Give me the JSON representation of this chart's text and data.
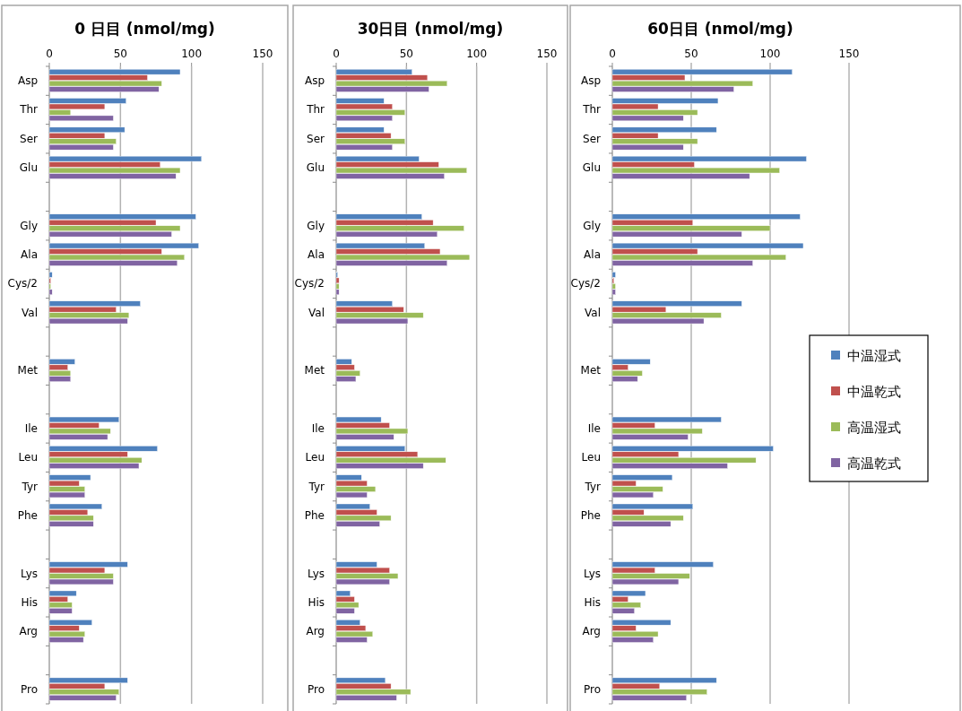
{
  "chart_data": [
    {
      "type": "bar",
      "orientation": "horizontal",
      "title": "0 日目 (nmol/mg)",
      "categories": [
        "Asp",
        "Thr",
        "Ser",
        "Glu",
        null,
        "Gly",
        "Ala",
        "Cys/2",
        "Val",
        null,
        "Met",
        null,
        "Ile",
        "Leu",
        "Tyr",
        "Phe",
        null,
        "Lys",
        "His",
        "Arg",
        null,
        "Pro"
      ],
      "xlim": [
        0,
        150
      ],
      "xticks": [
        0,
        50,
        100,
        150
      ],
      "grid": "x",
      "legend": false,
      "series": [
        {
          "color": "#4f81bd",
          "values": [
            92,
            54,
            53,
            107,
            null,
            103,
            105,
            2,
            64,
            null,
            18,
            null,
            49,
            76,
            29,
            37,
            null,
            55,
            19,
            30,
            null,
            55
          ]
        },
        {
          "color": "#c0504d",
          "values": [
            69,
            39,
            39,
            78,
            null,
            75,
            79,
            1,
            47,
            null,
            13,
            null,
            35,
            55,
            21,
            27,
            null,
            39,
            13,
            21,
            null,
            39
          ]
        },
        {
          "color": "#9bbb59",
          "values": [
            79,
            15,
            47,
            92,
            null,
            92,
            95,
            1,
            56,
            null,
            15,
            null,
            43,
            65,
            25,
            31,
            null,
            45,
            16,
            25,
            null,
            49
          ]
        },
        {
          "color": "#8064a2",
          "values": [
            77,
            45,
            45,
            89,
            null,
            86,
            90,
            2,
            55,
            null,
            15,
            null,
            41,
            63,
            25,
            31,
            null,
            45,
            16,
            24,
            null,
            47
          ]
        }
      ]
    },
    {
      "type": "bar",
      "orientation": "horizontal",
      "title": "30日目 (nmol/mg)",
      "categories": [
        "Asp",
        "Thr",
        "Ser",
        "Glu",
        null,
        "Gly",
        "Ala",
        "Cys/2",
        "Val",
        null,
        "Met",
        null,
        "Ile",
        "Leu",
        "Tyr",
        "Phe",
        null,
        "Lys",
        "His",
        "Arg",
        null,
        "Pro"
      ],
      "xlim": [
        0,
        150
      ],
      "xticks": [
        0,
        50,
        100,
        150
      ],
      "grid": "x",
      "legend": false,
      "series": [
        {
          "color": "#4f81bd",
          "values": [
            54,
            34,
            34,
            59,
            null,
            61,
            63,
            1,
            40,
            null,
            11,
            null,
            32,
            49,
            18,
            24,
            null,
            29,
            10,
            17,
            null,
            35
          ]
        },
        {
          "color": "#c0504d",
          "values": [
            65,
            40,
            39,
            73,
            null,
            69,
            74,
            2,
            48,
            null,
            13,
            null,
            38,
            58,
            22,
            29,
            null,
            38,
            13,
            21,
            null,
            39
          ]
        },
        {
          "color": "#9bbb59",
          "values": [
            79,
            49,
            49,
            93,
            null,
            91,
            95,
            2,
            62,
            null,
            17,
            null,
            51,
            78,
            28,
            39,
            null,
            44,
            16,
            26,
            null,
            53
          ]
        },
        {
          "color": "#8064a2",
          "values": [
            66,
            40,
            40,
            77,
            null,
            72,
            79,
            2,
            51,
            null,
            14,
            null,
            41,
            62,
            22,
            31,
            null,
            38,
            13,
            22,
            null,
            43
          ]
        }
      ]
    },
    {
      "type": "bar",
      "orientation": "horizontal",
      "title": "60日目 (nmol/mg)",
      "categories": [
        "Asp",
        "Thr",
        "Ser",
        "Glu",
        null,
        "Gly",
        "Ala",
        "Cys/2",
        "Val",
        null,
        "Met",
        null,
        "Ile",
        "Leu",
        "Tyr",
        "Phe",
        null,
        "Lys",
        "His",
        "Arg",
        null,
        "Pro"
      ],
      "xlim": [
        0,
        150
      ],
      "xticks": [
        0,
        50,
        100,
        150
      ],
      "grid": "x",
      "legend": "right",
      "series": [
        {
          "name": "中温湿式",
          "color": "#4f81bd",
          "values": [
            114,
            67,
            66,
            123,
            null,
            119,
            121,
            2,
            82,
            null,
            24,
            null,
            69,
            102,
            38,
            51,
            null,
            64,
            21,
            37,
            null,
            66
          ]
        },
        {
          "name": "中温乾式",
          "color": "#c0504d",
          "values": [
            46,
            29,
            29,
            52,
            null,
            51,
            54,
            1,
            34,
            null,
            10,
            null,
            27,
            42,
            15,
            20,
            null,
            27,
            10,
            15,
            null,
            30
          ]
        },
        {
          "name": "高温湿式",
          "color": "#9bbb59",
          "values": [
            89,
            54,
            54,
            106,
            null,
            100,
            110,
            2,
            69,
            null,
            19,
            null,
            57,
            91,
            32,
            45,
            null,
            49,
            18,
            29,
            null,
            60
          ]
        },
        {
          "name": "高温乾式",
          "color": "#8064a2",
          "values": [
            77,
            45,
            45,
            87,
            null,
            82,
            89,
            2,
            58,
            null,
            16,
            null,
            48,
            73,
            26,
            37,
            null,
            42,
            14,
            26,
            null,
            47
          ]
        }
      ]
    }
  ]
}
